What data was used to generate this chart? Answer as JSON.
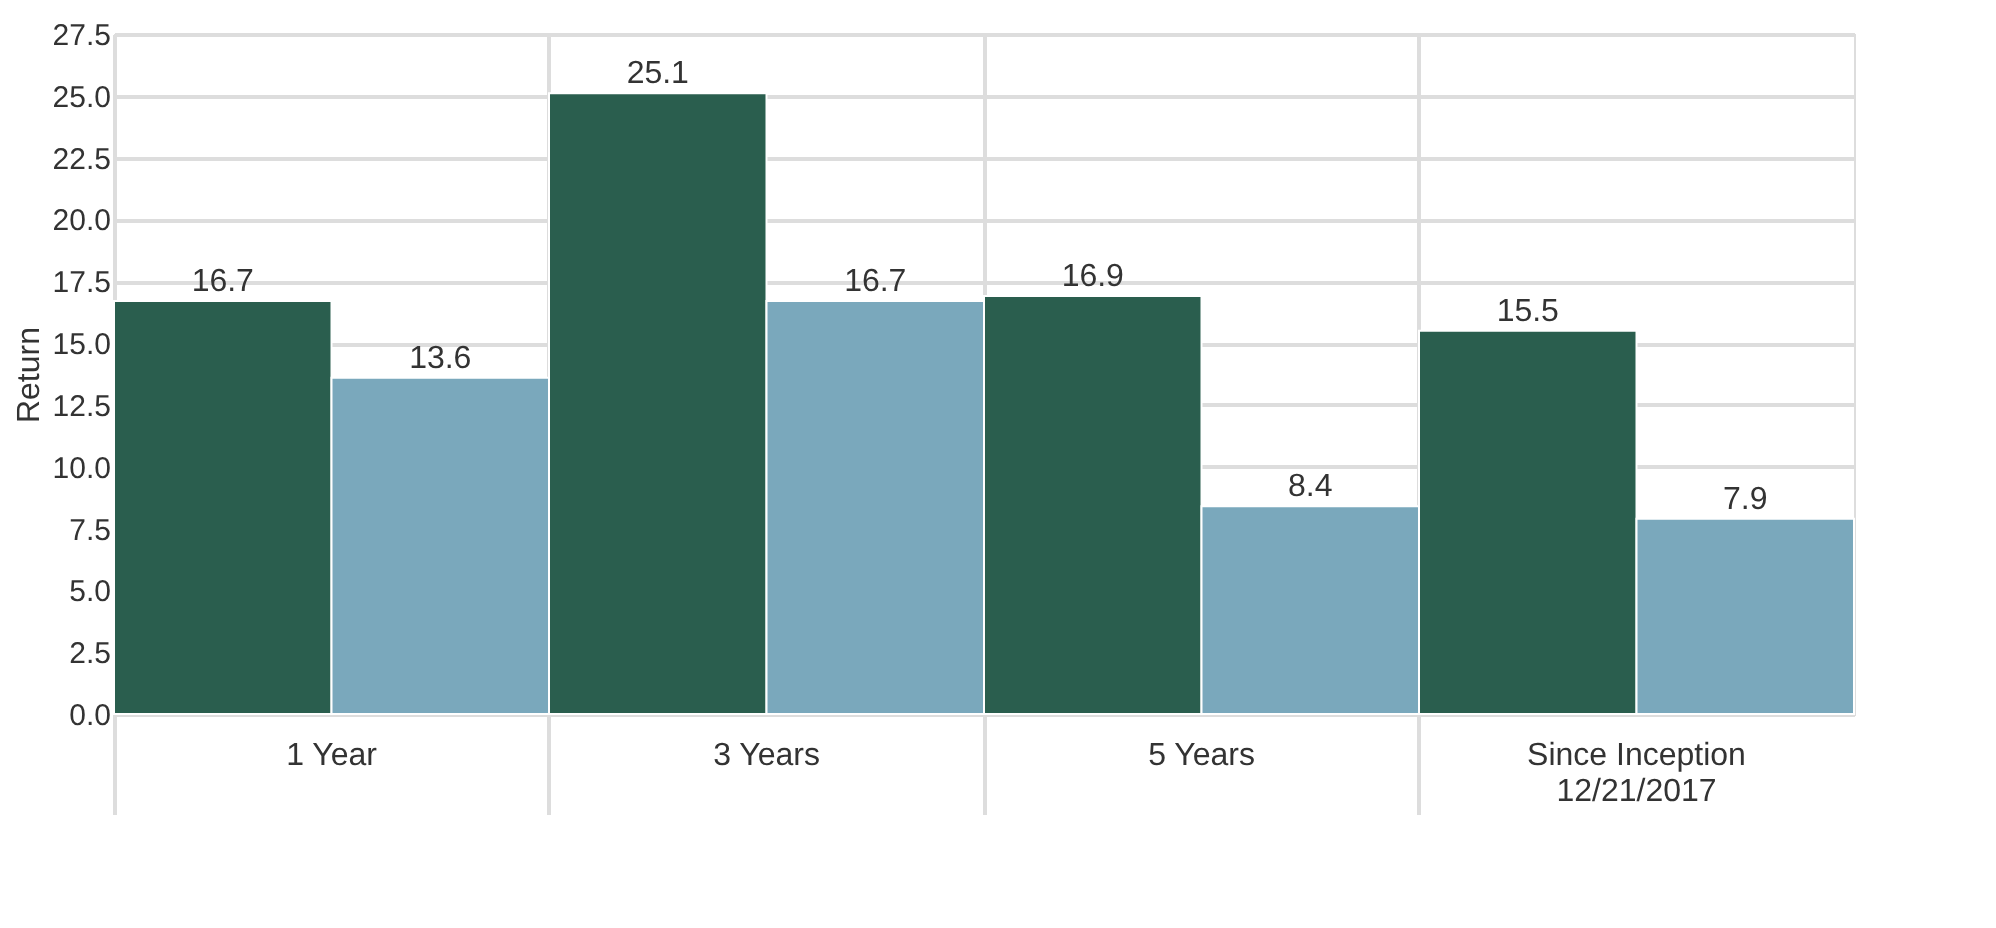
{
  "chart_data": {
    "type": "bar",
    "ylabel": "Return",
    "categories": [
      "1 Year",
      "3 Years",
      "5 Years",
      "Since Inception\n12/21/2017"
    ],
    "series": [
      {
        "color": "#2a5e4e",
        "values": [
          16.7,
          25.1,
          16.9,
          15.5
        ]
      },
      {
        "color": "#7aa8bc",
        "values": [
          13.6,
          16.7,
          8.4,
          7.9
        ]
      }
    ],
    "ylim": [
      0,
      27.5
    ],
    "yticks": [
      {
        "value": 0,
        "label": "0.0"
      },
      2.5,
      {
        "value": 5,
        "label": "5.0"
      },
      7.5,
      {
        "value": 10,
        "label": "10.0"
      },
      12.5,
      {
        "value": 15,
        "label": "15.0"
      },
      17.5,
      {
        "value": 20,
        "label": "20.0"
      },
      22.5,
      {
        "value": 25,
        "label": "25.0"
      },
      27.5
    ],
    "data_labels": true,
    "grid": true,
    "legend": false
  }
}
